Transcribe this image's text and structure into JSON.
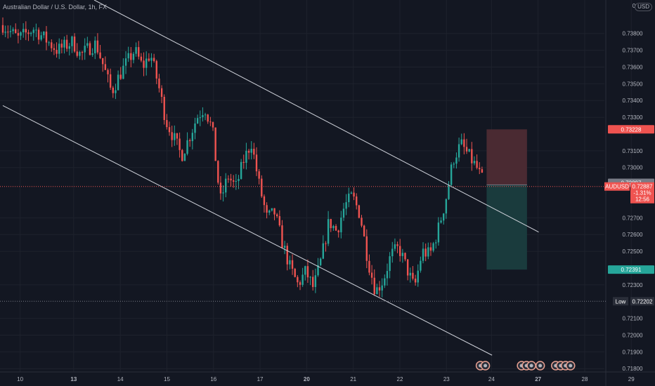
{
  "header": {
    "symbol_title": "Australian Dollar / U.S. Dollar, 1h, FX",
    "currency": "USD"
  },
  "colors": {
    "background": "#131722",
    "grid": "#1e222d",
    "up": "#26a69a",
    "down": "#ef5350",
    "channel": "#d1d4dc",
    "stop_zone": "#4a2a32",
    "target_zone": "#1a3b3d",
    "price_line": "#ef5350"
  },
  "chart_data": {
    "type": "candlestick",
    "y_ticks": [
      "0.73800",
      "0.73700",
      "0.73600",
      "0.73500",
      "0.73400",
      "0.73300",
      "0.73100",
      "0.73000",
      "0.72700",
      "0.72600",
      "0.72500",
      "0.72300",
      "0.72100",
      "0.72000",
      "0.71900",
      "0.71800"
    ],
    "x_ticks": [
      {
        "label": "10",
        "bold": false
      },
      {
        "label": "13",
        "bold": true
      },
      {
        "label": "14",
        "bold": false
      },
      {
        "label": "15",
        "bold": false
      },
      {
        "label": "16",
        "bold": false
      },
      {
        "label": "17",
        "bold": false
      },
      {
        "label": "20",
        "bold": true
      },
      {
        "label": "21",
        "bold": false
      },
      {
        "label": "22",
        "bold": false
      },
      {
        "label": "23",
        "bold": false
      },
      {
        "label": "24",
        "bold": false
      },
      {
        "label": "27",
        "bold": true
      },
      {
        "label": "28",
        "bold": false
      },
      {
        "label": "29",
        "bold": false
      }
    ],
    "ylim": [
      0.7178,
      0.74
    ],
    "price_path": [
      [
        0,
        0.7385
      ],
      [
        2,
        0.7377
      ],
      [
        4,
        0.7383
      ],
      [
        7,
        0.737
      ],
      [
        9,
        0.7375
      ],
      [
        10,
        0.7367
      ],
      [
        11,
        0.7371
      ],
      [
        12,
        0.7374
      ],
      [
        13,
        0.736
      ],
      [
        14,
        0.7345
      ],
      [
        15,
        0.7355
      ],
      [
        16,
        0.7363
      ],
      [
        17,
        0.737
      ],
      [
        18,
        0.736
      ],
      [
        19,
        0.7368
      ],
      [
        20,
        0.735
      ],
      [
        21,
        0.7328
      ],
      [
        22,
        0.7318
      ],
      [
        23,
        0.7307
      ],
      [
        24,
        0.7318
      ],
      [
        25,
        0.733
      ],
      [
        26,
        0.7336
      ],
      [
        27,
        0.7322
      ],
      [
        28,
        0.728
      ],
      [
        29,
        0.7295
      ],
      [
        30,
        0.7288
      ],
      [
        31,
        0.7304
      ],
      [
        32,
        0.7315
      ],
      [
        33,
        0.729
      ],
      [
        34,
        0.727
      ],
      [
        35,
        0.7273
      ],
      [
        36,
        0.7255
      ],
      [
        37,
        0.724
      ],
      [
        38,
        0.723
      ],
      [
        39,
        0.7238
      ],
      [
        40,
        0.7228
      ],
      [
        41,
        0.7245
      ],
      [
        42,
        0.7268
      ],
      [
        43,
        0.7262
      ],
      [
        44,
        0.7277
      ],
      [
        45,
        0.7283
      ],
      [
        46,
        0.7272
      ],
      [
        47,
        0.7245
      ],
      [
        48,
        0.7226
      ],
      [
        49,
        0.7233
      ],
      [
        50,
        0.7248
      ],
      [
        51,
        0.7252
      ],
      [
        52,
        0.724
      ],
      [
        53,
        0.7228
      ],
      [
        54,
        0.725
      ],
      [
        55,
        0.7248
      ],
      [
        56,
        0.7262
      ],
      [
        57,
        0.728
      ],
      [
        58,
        0.7305
      ],
      [
        59,
        0.7314
      ],
      [
        60,
        0.7307
      ],
      [
        61,
        0.73
      ],
      [
        62,
        0.729
      ]
    ],
    "ohlc_xrange": [
      0,
      62
    ],
    "channel_upper": {
      "x": [
        0,
        62
      ],
      "y": [
        0.7403,
        0.73
      ]
    },
    "channel_lower": {
      "x": [
        0,
        62
      ],
      "y": [
        0.7335,
        0.7187
      ]
    },
    "position": {
      "entry": 0.72897,
      "stop": 0.73228,
      "target": 0.72391,
      "x_start": 62.3,
      "x_end": 67.5
    },
    "current_price": 0.72887,
    "low_value": 0.72202
  },
  "price_scale": {
    "stop_badge": "0.73228",
    "entry_badge": "0.72897",
    "current_badge_symbol": "AUDUSD",
    "current_badge_price": "0.72887",
    "current_badge_change": "-1.31%",
    "current_badge_timer": "12:56",
    "target_badge": "0.72391",
    "low_label": "Low",
    "low_badge": "0.72202",
    "zero_label": "0"
  },
  "event_markers": {
    "groups": [
      {
        "x": 61.5,
        "count": 2
      },
      {
        "x": 66.8,
        "count": 3
      },
      {
        "x": 69.2,
        "count": 1
      },
      {
        "x": 71.2,
        "count": 4
      }
    ]
  }
}
